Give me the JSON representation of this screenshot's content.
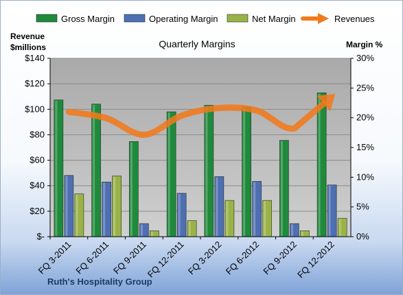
{
  "chart_data": {
    "type": "bar",
    "title": "Quarterly Margins",
    "footer": "Ruth's Hospitality Group",
    "y_left_label": [
      "Revenue",
      "$millions"
    ],
    "y_right_label": "Margin %",
    "y_left_ticks": [
      "$-",
      "$20",
      "$40",
      "$60",
      "$80",
      "$100",
      "$120",
      "$140"
    ],
    "y_right_ticks": [
      "0%",
      "5%",
      "10%",
      "15%",
      "20%",
      "25%",
      "30%"
    ],
    "ylim_left": [
      0,
      140
    ],
    "ylim_right": [
      0,
      30
    ],
    "grid": true,
    "legend_position": "top",
    "categories": [
      "FQ 3-2011",
      "FQ 6-2011",
      "FQ 9-2011",
      "FQ 12-2011",
      "FQ 3-2012",
      "FQ 6-2012",
      "FQ 9-2012",
      "FQ 12-2012"
    ],
    "series": [
      {
        "name": "Gross Margin",
        "kind": "bar",
        "axis": "right",
        "color": "#1f8a3c",
        "values": [
          23.0,
          22.3,
          16.0,
          21.0,
          22.1,
          21.8,
          16.2,
          24.2
        ]
      },
      {
        "name": "Operating Margin",
        "kind": "bar",
        "axis": "right",
        "color": "#4f6fb3",
        "values": [
          10.3,
          9.2,
          2.2,
          7.3,
          10.1,
          9.3,
          2.2,
          8.7
        ]
      },
      {
        "name": "Net Margin",
        "kind": "bar",
        "axis": "right",
        "color": "#9ab347",
        "values": [
          7.2,
          10.2,
          1.0,
          2.7,
          6.1,
          6.1,
          1.0,
          3.1
        ]
      },
      {
        "name": "Revenues",
        "kind": "line",
        "axis": "left",
        "color": "#f07a1c",
        "values": [
          98,
          93,
          80,
          95,
          101,
          99,
          85,
          110
        ]
      }
    ]
  }
}
